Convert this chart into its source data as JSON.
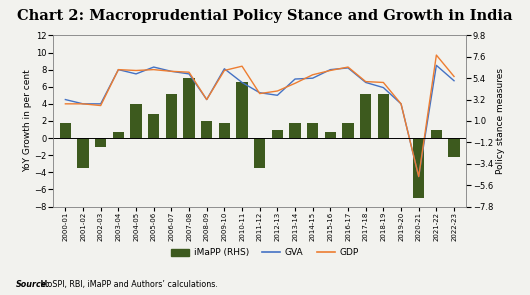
{
  "title": "Chart 2: Macroprudential Policy Stance and Growth in India",
  "source_bold": "Source:",
  "source_rest": " MoSPI, RBI, iMaPP and Authors’ calculations.",
  "x_labels": [
    "2000-01",
    "2001-02",
    "2002-03",
    "2003-04",
    "2004-05",
    "2005-06",
    "2006-07",
    "2007-08",
    "2008-09",
    "2009-10",
    "2010-11",
    "2011-12",
    "2012-13",
    "2013-14",
    "2014-15",
    "2015-16",
    "2016-17",
    "2017-18",
    "2018-19",
    "2019-20",
    "2020-21",
    "2021-22",
    "2022-23"
  ],
  "gva": [
    4.5,
    4.0,
    4.0,
    8.0,
    7.5,
    8.3,
    7.8,
    7.5,
    4.5,
    8.1,
    6.5,
    5.3,
    5.0,
    6.9,
    7.0,
    8.0,
    8.2,
    6.5,
    5.9,
    4.0,
    -4.5,
    8.5,
    6.7
  ],
  "gdp": [
    4.0,
    4.0,
    3.8,
    8.0,
    7.9,
    8.0,
    7.8,
    7.7,
    4.5,
    7.9,
    8.4,
    5.2,
    5.5,
    6.4,
    7.4,
    7.9,
    8.3,
    6.6,
    6.5,
    4.0,
    -4.5,
    9.7,
    7.2
  ],
  "imapp": [
    1.8,
    -3.5,
    -1.0,
    0.7,
    4.0,
    2.8,
    5.2,
    7.0,
    2.0,
    1.8,
    6.5,
    -3.5,
    1.0,
    1.8,
    1.8,
    0.7,
    1.8,
    5.2,
    5.2,
    0.0,
    -7.0,
    1.0,
    -2.2
  ],
  "left_ylim": [
    -8,
    12
  ],
  "left_yticks": [
    -8,
    -6,
    -4,
    -2,
    0,
    2,
    4,
    6,
    8,
    10,
    12
  ],
  "right_ylim": [
    -7.8,
    9.8
  ],
  "right_yticks": [
    -7.8,
    -5.6,
    -3.4,
    -1.2,
    1.0,
    3.2,
    5.4,
    7.6,
    9.8
  ],
  "left_ylabel": "YoY Growth in per cent",
  "right_ylabel": "Policy stance measures",
  "bar_color": "#3d5a1e",
  "gva_color": "#4472c4",
  "gdp_color": "#ed7d31",
  "bg_color": "#f2f2ee",
  "title_fontsize": 10.5,
  "tick_fontsize": 6.0,
  "ylabel_fontsize": 6.5
}
